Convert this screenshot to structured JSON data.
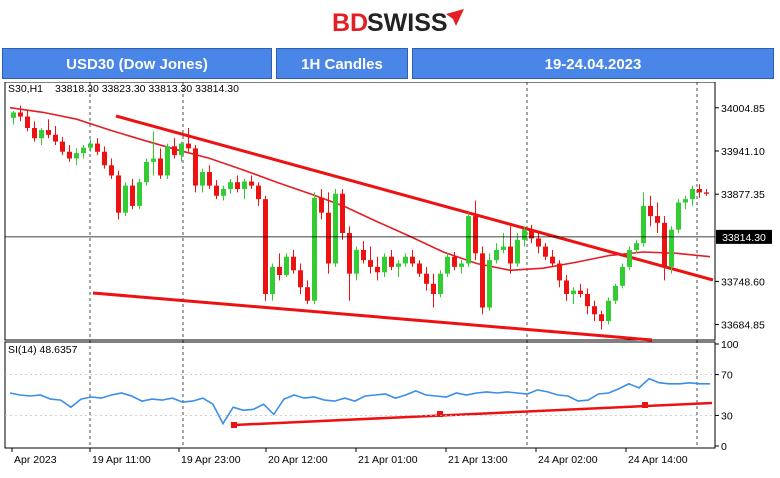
{
  "logo": {
    "text_a": "BD",
    "text_b": "SWISS"
  },
  "banner": {
    "instrument": "USD30 (Dow Jones)",
    "timeframe": "1H Candles",
    "date_range": "19-24.04.2023"
  },
  "chart_data": {
    "type": "candlestick",
    "instrument_label": "S30,H1",
    "ohlc_label": "33818.30 33823.30 33813.30 33814.30",
    "price_axis": {
      "ticks": [
        "34004.85",
        "33941.10",
        "33877.35",
        "33748.60",
        "33684.85"
      ],
      "range": [
        33665,
        34040
      ],
      "current_price_label": "33814.30",
      "current_price": 33814.3
    },
    "time_axis": {
      "labels": [
        "Apr 2023",
        "19 Apr 11:00",
        "19 Apr 23:00",
        "20 Apr 12:00",
        "21 Apr 01:00",
        "21 Apr 13:00",
        "24 Apr 02:00",
        "24 Apr 14:00"
      ]
    },
    "candles": [
      [
        33990,
        34000,
        33980,
        33998
      ],
      [
        33998,
        34008,
        33985,
        33992
      ],
      [
        33992,
        34002,
        33970,
        33975
      ],
      [
        33975,
        33985,
        33955,
        33960
      ],
      [
        33960,
        33975,
        33950,
        33972
      ],
      [
        33972,
        33988,
        33960,
        33965
      ],
      [
        33965,
        33978,
        33950,
        33955
      ],
      [
        33955,
        33962,
        33935,
        33940
      ],
      [
        33940,
        33950,
        33925,
        33930
      ],
      [
        33930,
        33945,
        33920,
        33938
      ],
      [
        33938,
        33950,
        33930,
        33946
      ],
      [
        33946,
        33958,
        33940,
        33952
      ],
      [
        33952,
        33960,
        33935,
        33940
      ],
      [
        33940,
        33948,
        33915,
        33920
      ],
      [
        33920,
        33930,
        33900,
        33905
      ],
      [
        33905,
        33912,
        33840,
        33850
      ],
      [
        33850,
        33895,
        33845,
        33890
      ],
      [
        33890,
        33900,
        33855,
        33860
      ],
      [
        33860,
        33900,
        33855,
        33895
      ],
      [
        33895,
        33930,
        33890,
        33925
      ],
      [
        33925,
        33970,
        33905,
        33930
      ],
      [
        33930,
        33945,
        33900,
        33905
      ],
      [
        33905,
        33952,
        33900,
        33948
      ],
      [
        33948,
        33960,
        33930,
        33935
      ],
      [
        33935,
        33955,
        33925,
        33952
      ],
      [
        33952,
        33975,
        33940,
        33945
      ],
      [
        33945,
        33950,
        33880,
        33890
      ],
      [
        33890,
        33915,
        33880,
        33910
      ],
      [
        33910,
        33920,
        33885,
        33890
      ],
      [
        33890,
        33898,
        33870,
        33875
      ],
      [
        33875,
        33890,
        33868,
        33885
      ],
      [
        33885,
        33900,
        33878,
        33895
      ],
      [
        33895,
        33905,
        33880,
        33885
      ],
      [
        33885,
        33900,
        33870,
        33896
      ],
      [
        33896,
        33905,
        33885,
        33890
      ],
      [
        33890,
        33895,
        33860,
        33870
      ],
      [
        33870,
        33875,
        33720,
        33730
      ],
      [
        33730,
        33775,
        33720,
        33770
      ],
      [
        33770,
        33790,
        33750,
        33758
      ],
      [
        33758,
        33790,
        33755,
        33785
      ],
      [
        33785,
        33795,
        33760,
        33765
      ],
      [
        33765,
        33775,
        33730,
        33740
      ],
      [
        33740,
        33750,
        33715,
        33720
      ],
      [
        33720,
        33880,
        33715,
        33872
      ],
      [
        33872,
        33885,
        33840,
        33850
      ],
      [
        33850,
        33880,
        33760,
        33775
      ],
      [
        33775,
        33885,
        33770,
        33878
      ],
      [
        33878,
        33885,
        33810,
        33820
      ],
      [
        33820,
        33830,
        33720,
        33760
      ],
      [
        33760,
        33800,
        33750,
        33795
      ],
      [
        33795,
        33808,
        33775,
        33780
      ],
      [
        33780,
        33800,
        33760,
        33770
      ],
      [
        33770,
        33785,
        33750,
        33762
      ],
      [
        33762,
        33790,
        33755,
        33785
      ],
      [
        33785,
        33795,
        33765,
        33770
      ],
      [
        33770,
        33780,
        33755,
        33775
      ],
      [
        33775,
        33790,
        33770,
        33785
      ],
      [
        33785,
        33795,
        33770,
        33775
      ],
      [
        33775,
        33780,
        33755,
        33760
      ],
      [
        33760,
        33770,
        33735,
        33745
      ],
      [
        33745,
        33760,
        33710,
        33730
      ],
      [
        33730,
        33765,
        33725,
        33760
      ],
      [
        33760,
        33790,
        33755,
        33785
      ],
      [
        33785,
        33792,
        33765,
        33770
      ],
      [
        33770,
        33780,
        33760,
        33775
      ],
      [
        33775,
        33850,
        33770,
        33845
      ],
      [
        33845,
        33868,
        33780,
        33790
      ],
      [
        33790,
        33800,
        33700,
        33710
      ],
      [
        33710,
        33790,
        33705,
        33780
      ],
      [
        33780,
        33805,
        33775,
        33795
      ],
      [
        33795,
        33820,
        33790,
        33800
      ],
      [
        33800,
        33830,
        33760,
        33775
      ],
      [
        33775,
        33820,
        33770,
        33810
      ],
      [
        33810,
        33830,
        33800,
        33825
      ],
      [
        33825,
        33832,
        33805,
        33812
      ],
      [
        33812,
        33820,
        33790,
        33800
      ],
      [
        33800,
        33805,
        33780,
        33785
      ],
      [
        33785,
        33795,
        33770,
        33775
      ],
      [
        33775,
        33780,
        33740,
        33750
      ],
      [
        33750,
        33758,
        33720,
        33730
      ],
      [
        33730,
        33740,
        33715,
        33735
      ],
      [
        33735,
        33745,
        33725,
        33730
      ],
      [
        33730,
        33738,
        33700,
        33712
      ],
      [
        33712,
        33720,
        33690,
        33700
      ],
      [
        33700,
        33705,
        33678,
        33690
      ],
      [
        33690,
        33725,
        33685,
        33720
      ],
      [
        33720,
        33745,
        33715,
        33742
      ],
      [
        33742,
        33775,
        33738,
        33770
      ],
      [
        33770,
        33800,
        33765,
        33795
      ],
      [
        33795,
        33810,
        33790,
        33805
      ],
      [
        33805,
        33880,
        33800,
        33860
      ],
      [
        33860,
        33875,
        33830,
        33845
      ],
      [
        33845,
        33865,
        33820,
        33835
      ],
      [
        33835,
        33845,
        33750,
        33770
      ],
      [
        33770,
        33830,
        33760,
        33825
      ],
      [
        33825,
        33870,
        33820,
        33865
      ],
      [
        33865,
        33875,
        33855,
        33870
      ],
      [
        33870,
        33890,
        33860,
        33885
      ],
      [
        33885,
        33892,
        33872,
        33880
      ],
      [
        33880,
        33885,
        33875,
        33878
      ]
    ],
    "ma_levels": [
      34005,
      33998,
      33988,
      33972,
      33957,
      33943,
      33930,
      33913,
      33895,
      33878,
      33860,
      33837,
      33815,
      33792,
      33775,
      33765,
      33768,
      33777,
      33787,
      33792,
      33790,
      33785
    ],
    "indicator": {
      "label": "SI(14) 48.6357",
      "ticks": [
        "100",
        "70",
        "30",
        "0"
      ],
      "range": [
        0,
        100
      ],
      "values": [
        52,
        50,
        49,
        50,
        46,
        45,
        38,
        46,
        48,
        47,
        50,
        52,
        49,
        44,
        46,
        45,
        47,
        43,
        44,
        47,
        41,
        22,
        38,
        35,
        36,
        41,
        31,
        46,
        50,
        47,
        48,
        45,
        44,
        47,
        44,
        49,
        50,
        51,
        47,
        50,
        54,
        50,
        49,
        48,
        52,
        50,
        52,
        53,
        52,
        53,
        52,
        51,
        55,
        53,
        50,
        49,
        44,
        45,
        51,
        52,
        56,
        61,
        57,
        66,
        62,
        61,
        61,
        62,
        61,
        61
      ]
    }
  }
}
